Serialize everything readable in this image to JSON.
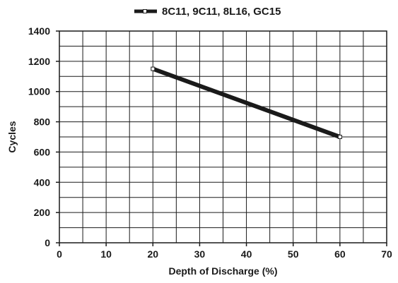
{
  "chart_data": {
    "type": "line",
    "title": "",
    "xlabel": "Depth of Discharge (%)",
    "ylabel": "Cycles",
    "xlim": [
      0,
      70
    ],
    "ylim": [
      0,
      1400
    ],
    "x_ticks": [
      0,
      10,
      20,
      30,
      40,
      50,
      60,
      70
    ],
    "y_ticks": [
      0,
      200,
      400,
      600,
      800,
      1000,
      1200,
      1400
    ],
    "x_minor_step": 5,
    "y_minor_step": 100,
    "grid": true,
    "legend_position": "top",
    "series": [
      {
        "name": "8C11, 9C11, 8L16, GC15",
        "color": "#1a1a1a",
        "marker": "square",
        "x": [
          20,
          60
        ],
        "y": [
          1150,
          700
        ]
      }
    ]
  }
}
